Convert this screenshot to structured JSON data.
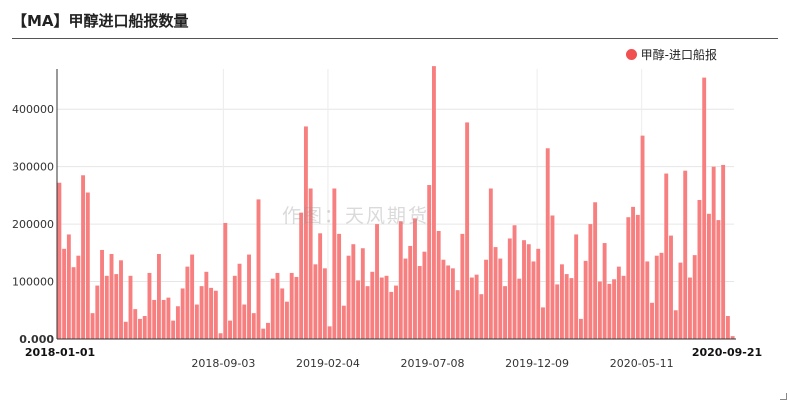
{
  "title": "【MA】甲醇进口船报数量",
  "watermark": "作图：天风期货",
  "chart_data": {
    "type": "bar",
    "title": "【MA】甲醇进口船报数量",
    "xlabel": "",
    "ylabel": "",
    "ylim": [
      0,
      470000
    ],
    "yticks": [
      "0.000",
      "100000",
      "200000",
      "300000",
      "400000"
    ],
    "grid": true,
    "legend_position": "top-right",
    "color": "#f77f7f",
    "x_start": "2018-01-01",
    "x_end": "2020-09-21",
    "xticks": [
      "2018-01-01",
      "2018-09-03",
      "2019-02-04",
      "2019-07-08",
      "2019-12-09",
      "2020-05-11",
      "2020-09-21"
    ],
    "bold_xticks": [
      "2018-01-01",
      "2020-09-21"
    ],
    "series": [
      {
        "name": "甲醇-进口船报",
        "values": [
          272000,
          157000,
          182000,
          125000,
          145000,
          285000,
          255000,
          45000,
          93000,
          155000,
          110000,
          148000,
          113000,
          137000,
          30000,
          110000,
          52000,
          35000,
          40000,
          115000,
          68000,
          148000,
          68000,
          72000,
          32000,
          57000,
          88000,
          126000,
          147000,
          60000,
          92000,
          117000,
          89000,
          84000,
          10000,
          202000,
          32000,
          110000,
          131000,
          60000,
          147000,
          45000,
          243000,
          18000,
          28000,
          105000,
          115000,
          88000,
          65000,
          115000,
          108000,
          220000,
          370000,
          262000,
          130000,
          184000,
          123000,
          22000,
          262000,
          183000,
          58000,
          145000,
          165000,
          102000,
          158000,
          92000,
          117000,
          200000,
          107000,
          110000,
          82000,
          93000,
          205000,
          140000,
          162000,
          210000,
          127000,
          152000,
          268000,
          475000,
          188000,
          138000,
          128000,
          123000,
          85000,
          183000,
          377000,
          107000,
          112000,
          78000,
          138000,
          262000,
          160000,
          140000,
          92000,
          175000,
          198000,
          105000,
          172000,
          165000,
          135000,
          157000,
          55000,
          332000,
          215000,
          95000,
          130000,
          113000,
          106000,
          182000,
          35000,
          136000,
          200000,
          238000,
          100000,
          167000,
          96000,
          104000,
          126000,
          110000,
          212000,
          230000,
          216000,
          354000,
          135000,
          63000,
          145000,
          150000,
          288000,
          180000,
          50000,
          133000,
          293000,
          107000,
          146000,
          242000,
          455000,
          218000,
          300000,
          207000,
          303000,
          40000,
          5000
        ]
      }
    ]
  }
}
